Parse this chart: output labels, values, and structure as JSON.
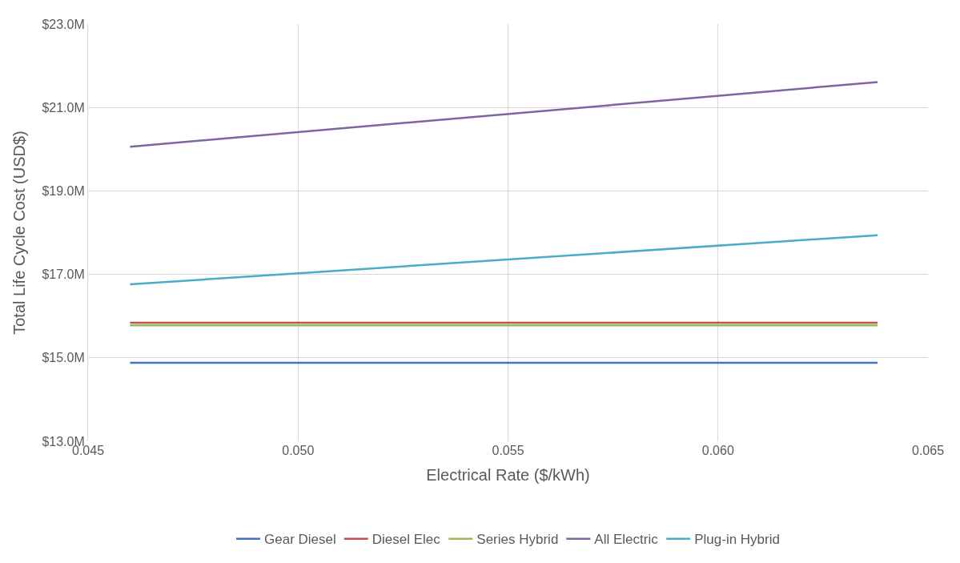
{
  "chart_data": {
    "type": "line",
    "xlabel": "Electrical Rate ($/kWh)",
    "ylabel": "Total Life Cycle Cost (USD$)",
    "x": [
      0.046,
      0.0638
    ],
    "series": [
      {
        "name": "Gear Diesel",
        "color": "#4472c4",
        "values": [
          14.88,
          14.88
        ]
      },
      {
        "name": "Diesel Elec",
        "color": "#c0504d",
        "values": [
          15.84,
          15.84
        ]
      },
      {
        "name": "Series Hybrid",
        "color": "#9bbb59",
        "values": [
          15.78,
          15.78
        ]
      },
      {
        "name": "All Electric",
        "color": "#8064a2",
        "values": [
          20.06,
          21.61
        ]
      },
      {
        "name": "Plug-in Hybrid",
        "color": "#4bacc6",
        "values": [
          16.76,
          17.94
        ]
      }
    ],
    "xlim": [
      0.045,
      0.065
    ],
    "xticks": [
      {
        "value": 0.045,
        "label": "0.045"
      },
      {
        "value": 0.05,
        "label": "0.050"
      },
      {
        "value": 0.055,
        "label": "0.055"
      },
      {
        "value": 0.06,
        "label": "0.060"
      },
      {
        "value": 0.065,
        "label": "0.065"
      }
    ],
    "ylim": [
      13,
      23
    ],
    "yticks": [
      {
        "value": 13,
        "label": "$13.0M"
      },
      {
        "value": 15,
        "label": "$15.0M"
      },
      {
        "value": 17,
        "label": "$17.0M"
      },
      {
        "value": 19,
        "label": "$19.0M"
      },
      {
        "value": 21,
        "label": "$21.0M"
      },
      {
        "value": 23,
        "label": "$23.0M"
      }
    ],
    "grid": true,
    "legend": "bottom",
    "marker": "none",
    "line_style": "solid"
  }
}
